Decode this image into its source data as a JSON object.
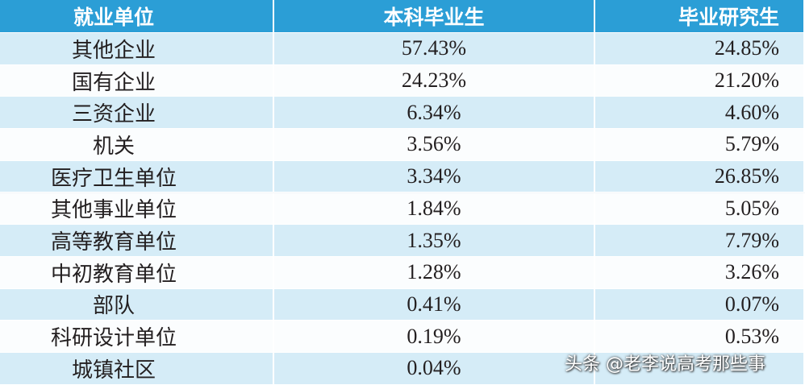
{
  "table": {
    "header": [
      "就业单位",
      "本科毕业生",
      "毕业研究生"
    ],
    "rows": [
      [
        "其他企业",
        "57.43%",
        "24.85%"
      ],
      [
        "国有企业",
        "24.23%",
        "21.20%"
      ],
      [
        "三资企业",
        "6.34%",
        "4.60%"
      ],
      [
        "机关",
        "3.56%",
        "5.79%"
      ],
      [
        "医疗卫生单位",
        "3.34%",
        "26.85%"
      ],
      [
        "其他事业单位",
        "1.84%",
        "5.05%"
      ],
      [
        "高等教育单位",
        "1.35%",
        "7.79%"
      ],
      [
        "中初教育单位",
        "1.28%",
        "3.26%"
      ],
      [
        "部队",
        "0.41%",
        "0.07%"
      ],
      [
        "科研设计单位",
        "0.19%",
        "0.53%"
      ],
      [
        "城镇社区",
        "0.04%",
        ""
      ]
    ]
  },
  "watermark": "头条 @老李说高考那些事"
}
